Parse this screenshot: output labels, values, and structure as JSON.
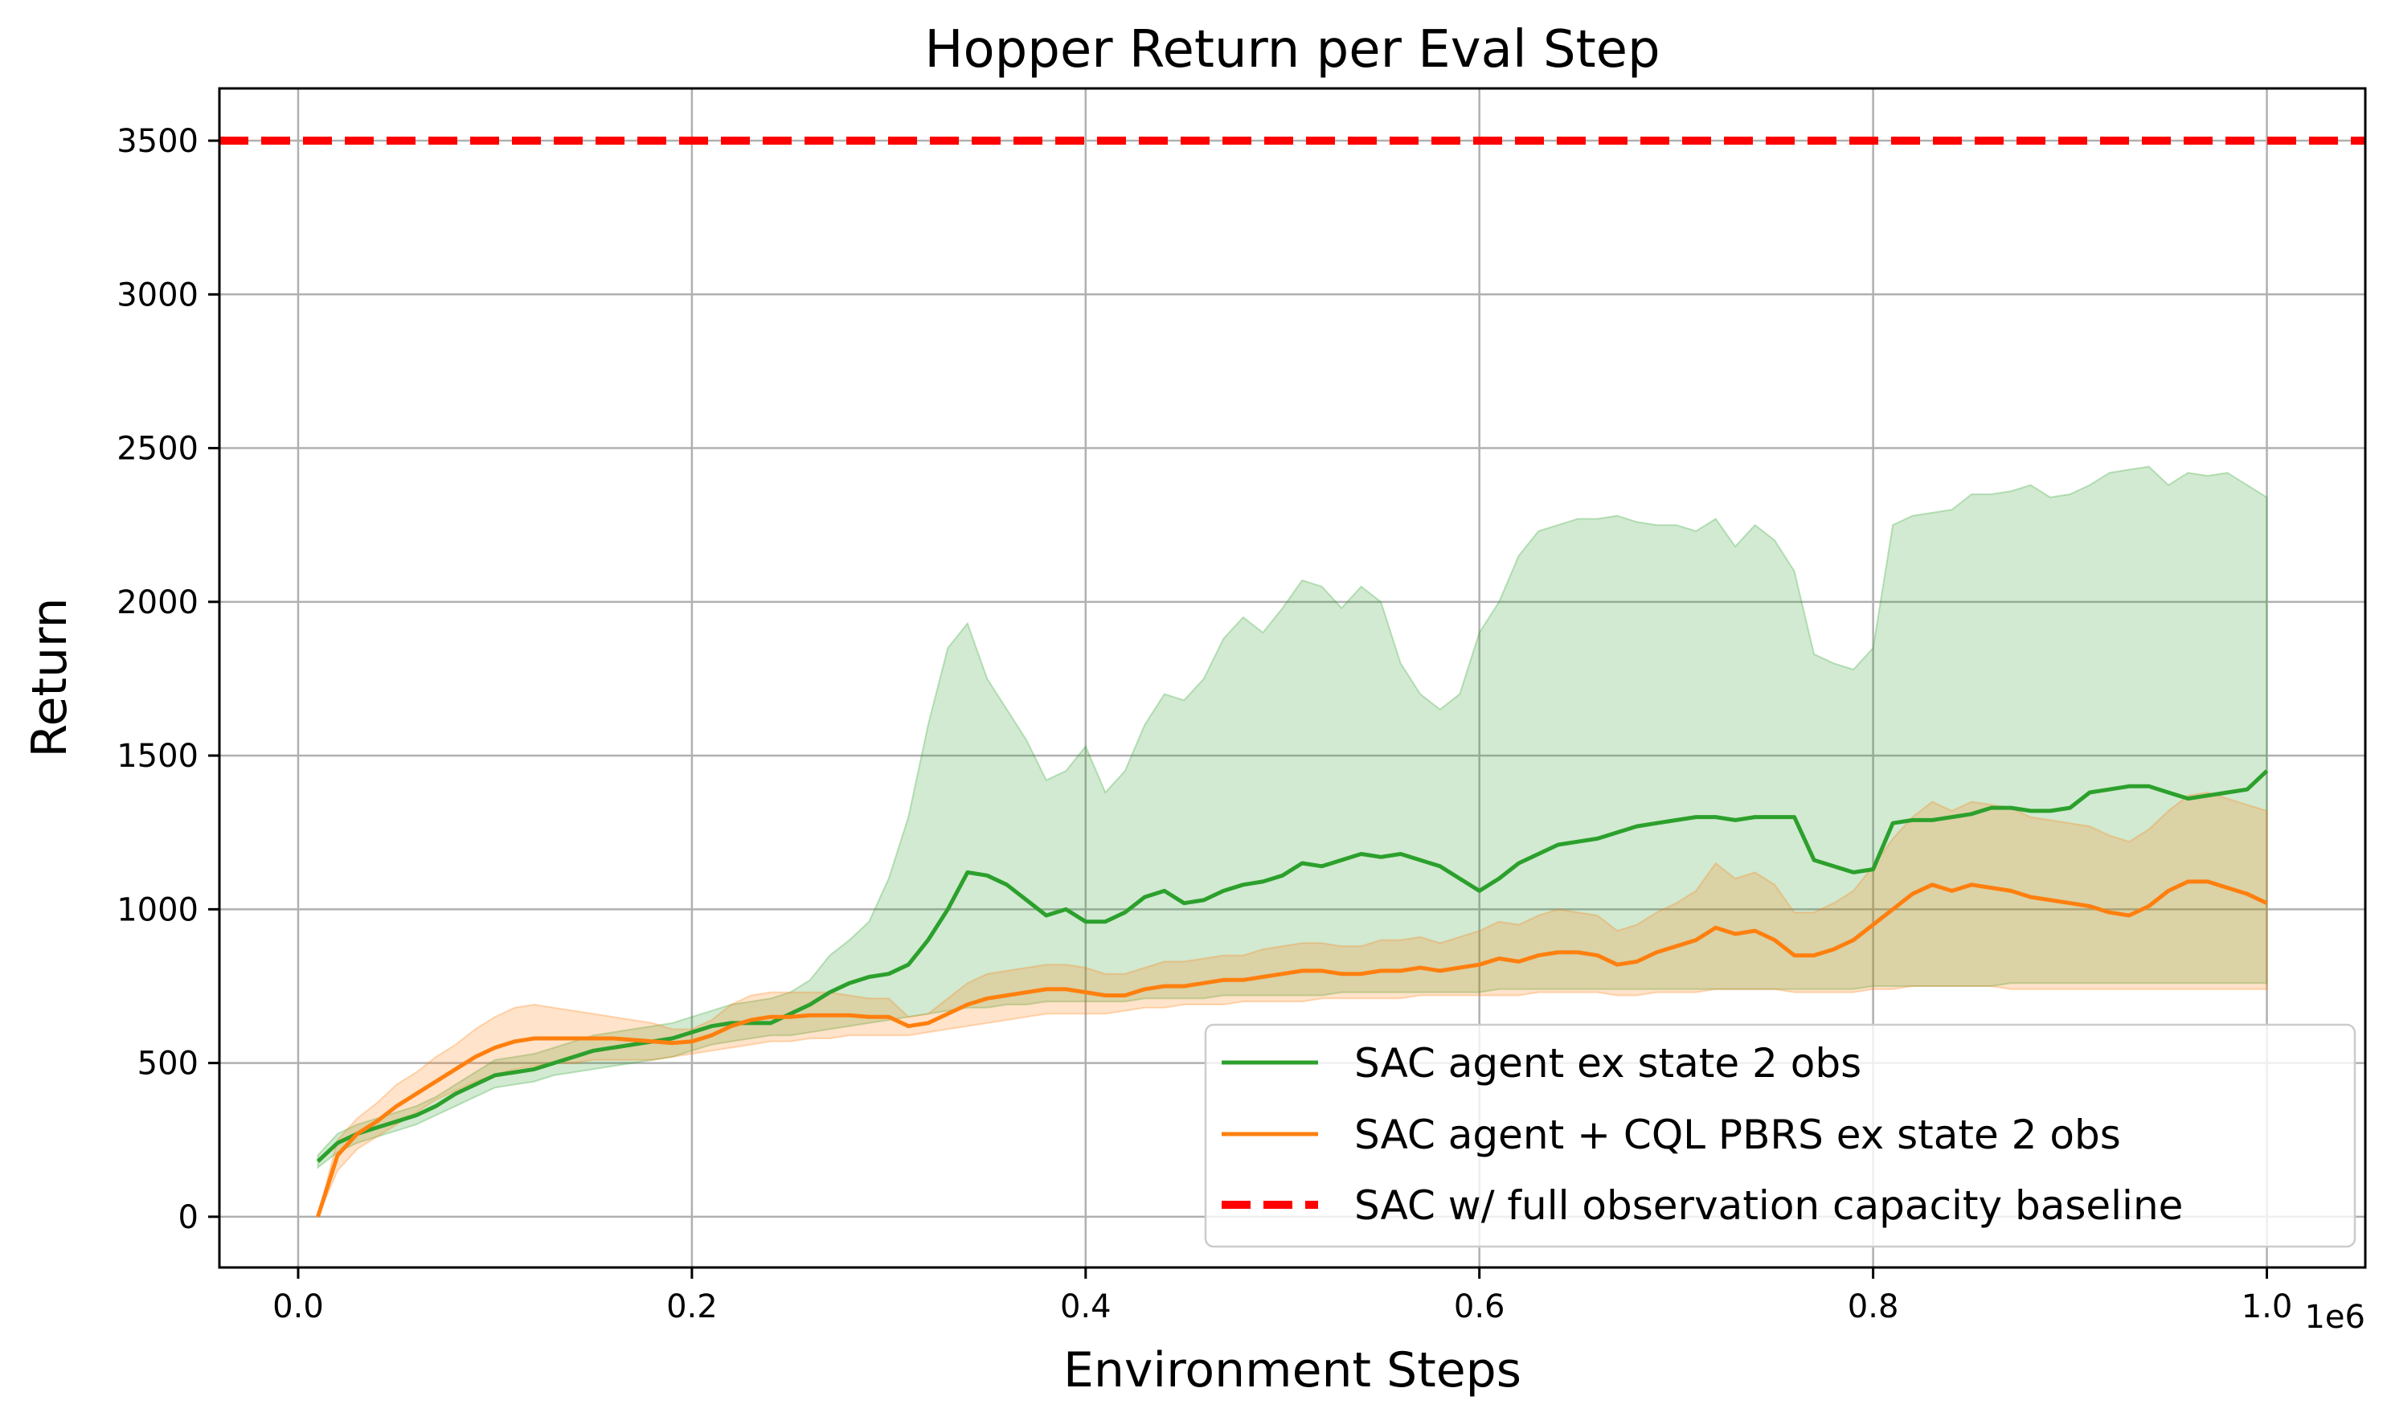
{
  "chart_data": {
    "type": "line",
    "title": "Hopper Return per Eval Step",
    "xlabel": "Environment Steps",
    "ylabel": "Return",
    "x_offset_label": "1e6",
    "xlim": [
      -0.04,
      1.05
    ],
    "ylim": [
      -165,
      3670
    ],
    "xticks": [
      0.0,
      0.2,
      0.4,
      0.6,
      0.8,
      1.0
    ],
    "xtick_labels": [
      "0.0",
      "0.2",
      "0.4",
      "0.6",
      "0.8",
      "1.0"
    ],
    "yticks": [
      0,
      500,
      1000,
      1500,
      2000,
      2500,
      3000,
      3500
    ],
    "ytick_labels": [
      "0",
      "500",
      "1000",
      "1500",
      "2000",
      "2500",
      "3000",
      "3500"
    ],
    "grid": true,
    "legend_position": "bottom-right",
    "series": [
      {
        "name": "SAC agent ex state 2 obs",
        "color": "#2ca02c",
        "band_color": "#2ca02c",
        "x": [
          0.01,
          0.02,
          0.03,
          0.04,
          0.05,
          0.06,
          0.07,
          0.08,
          0.09,
          0.1,
          0.11,
          0.12,
          0.13,
          0.14,
          0.15,
          0.16,
          0.17,
          0.18,
          0.19,
          0.2,
          0.21,
          0.22,
          0.23,
          0.24,
          0.25,
          0.26,
          0.27,
          0.28,
          0.29,
          0.3,
          0.31,
          0.32,
          0.33,
          0.34,
          0.35,
          0.36,
          0.37,
          0.38,
          0.39,
          0.4,
          0.41,
          0.42,
          0.43,
          0.44,
          0.45,
          0.46,
          0.47,
          0.48,
          0.49,
          0.5,
          0.51,
          0.52,
          0.53,
          0.54,
          0.55,
          0.56,
          0.57,
          0.58,
          0.59,
          0.6,
          0.61,
          0.62,
          0.63,
          0.64,
          0.65,
          0.66,
          0.67,
          0.68,
          0.69,
          0.7,
          0.71,
          0.72,
          0.73,
          0.74,
          0.75,
          0.76,
          0.77,
          0.78,
          0.79,
          0.8,
          0.81,
          0.82,
          0.83,
          0.84,
          0.85,
          0.86,
          0.87,
          0.88,
          0.89,
          0.9,
          0.91,
          0.92,
          0.93,
          0.94,
          0.95,
          0.96,
          0.97,
          0.98,
          0.99,
          1.0
        ],
        "mean": [
          180,
          240,
          270,
          290,
          310,
          330,
          360,
          400,
          430,
          460,
          470,
          480,
          500,
          520,
          540,
          550,
          560,
          570,
          580,
          600,
          620,
          630,
          630,
          630,
          660,
          690,
          730,
          760,
          780,
          790,
          820,
          900,
          1000,
          1120,
          1110,
          1080,
          1030,
          980,
          1000,
          960,
          960,
          990,
          1040,
          1060,
          1020,
          1030,
          1060,
          1080,
          1090,
          1110,
          1150,
          1140,
          1160,
          1180,
          1170,
          1180,
          1160,
          1140,
          1100,
          1060,
          1100,
          1150,
          1180,
          1210,
          1220,
          1230,
          1250,
          1270,
          1280,
          1290,
          1300,
          1300,
          1290,
          1300,
          1300,
          1300,
          1160,
          1140,
          1120,
          1130,
          1280,
          1290,
          1290,
          1300,
          1310,
          1330,
          1330,
          1320,
          1320,
          1330,
          1380,
          1390,
          1400,
          1400,
          1380,
          1360,
          1370,
          1380,
          1390,
          1450
        ],
        "lower": [
          160,
          210,
          240,
          260,
          280,
          300,
          330,
          360,
          390,
          420,
          430,
          440,
          460,
          470,
          480,
          490,
          500,
          510,
          520,
          540,
          560,
          570,
          580,
          590,
          590,
          600,
          610,
          620,
          630,
          640,
          650,
          660,
          670,
          680,
          680,
          690,
          690,
          700,
          700,
          700,
          700,
          700,
          710,
          710,
          710,
          710,
          720,
          720,
          720,
          720,
          720,
          720,
          730,
          730,
          730,
          730,
          730,
          730,
          730,
          730,
          740,
          740,
          740,
          740,
          740,
          740,
          740,
          740,
          740,
          740,
          740,
          740,
          740,
          740,
          740,
          740,
          740,
          740,
          740,
          750,
          750,
          750,
          750,
          750,
          750,
          750,
          760,
          760,
          760,
          760,
          760,
          760,
          760,
          760,
          760,
          760,
          760,
          760,
          760,
          760
        ],
        "upper": [
          200,
          270,
          300,
          320,
          340,
          360,
          390,
          430,
          470,
          510,
          520,
          530,
          550,
          570,
          590,
          600,
          610,
          620,
          630,
          650,
          670,
          690,
          700,
          710,
          730,
          770,
          850,
          900,
          960,
          1100,
          1300,
          1600,
          1850,
          1930,
          1750,
          1650,
          1550,
          1420,
          1450,
          1530,
          1380,
          1450,
          1600,
          1700,
          1680,
          1750,
          1880,
          1950,
          1900,
          1980,
          2070,
          2050,
          1980,
          2050,
          2000,
          1800,
          1700,
          1650,
          1700,
          1900,
          2000,
          2150,
          2230,
          2250,
          2270,
          2270,
          2280,
          2260,
          2250,
          2250,
          2230,
          2270,
          2180,
          2250,
          2200,
          2100,
          1830,
          1800,
          1780,
          1850,
          2250,
          2280,
          2290,
          2300,
          2350,
          2350,
          2360,
          2380,
          2340,
          2350,
          2380,
          2420,
          2430,
          2440,
          2380,
          2420,
          2410,
          2420,
          2380,
          2340
        ]
      },
      {
        "name": "SAC agent + CQL PBRS ex state 2 obs",
        "color": "#ff7f0e",
        "band_color": "#ff7f0e",
        "x": [
          0.01,
          0.02,
          0.03,
          0.04,
          0.05,
          0.06,
          0.07,
          0.08,
          0.09,
          0.1,
          0.11,
          0.12,
          0.13,
          0.14,
          0.15,
          0.16,
          0.17,
          0.18,
          0.19,
          0.2,
          0.21,
          0.22,
          0.23,
          0.24,
          0.25,
          0.26,
          0.27,
          0.28,
          0.29,
          0.3,
          0.31,
          0.32,
          0.33,
          0.34,
          0.35,
          0.36,
          0.37,
          0.38,
          0.39,
          0.4,
          0.41,
          0.42,
          0.43,
          0.44,
          0.45,
          0.46,
          0.47,
          0.48,
          0.49,
          0.5,
          0.51,
          0.52,
          0.53,
          0.54,
          0.55,
          0.56,
          0.57,
          0.58,
          0.59,
          0.6,
          0.61,
          0.62,
          0.63,
          0.64,
          0.65,
          0.66,
          0.67,
          0.68,
          0.69,
          0.7,
          0.71,
          0.72,
          0.73,
          0.74,
          0.75,
          0.76,
          0.77,
          0.78,
          0.79,
          0.8,
          0.81,
          0.82,
          0.83,
          0.84,
          0.85,
          0.86,
          0.87,
          0.88,
          0.89,
          0.9,
          0.91,
          0.92,
          0.93,
          0.94,
          0.95,
          0.96,
          0.97,
          0.98,
          0.99,
          1.0
        ],
        "mean": [
          0,
          200,
          270,
          310,
          360,
          400,
          440,
          480,
          520,
          550,
          570,
          580,
          580,
          580,
          580,
          580,
          575,
          570,
          565,
          570,
          590,
          620,
          640,
          650,
          650,
          655,
          655,
          655,
          650,
          650,
          620,
          630,
          660,
          690,
          710,
          720,
          730,
          740,
          740,
          730,
          720,
          720,
          740,
          750,
          750,
          760,
          770,
          770,
          780,
          790,
          800,
          800,
          790,
          790,
          800,
          800,
          810,
          800,
          810,
          820,
          840,
          830,
          850,
          860,
          860,
          850,
          820,
          830,
          860,
          880,
          900,
          940,
          920,
          930,
          900,
          850,
          850,
          870,
          900,
          950,
          1000,
          1050,
          1080,
          1060,
          1080,
          1070,
          1060,
          1040,
          1030,
          1020,
          1010,
          990,
          980,
          1010,
          1060,
          1090,
          1090,
          1070,
          1050,
          1020
        ],
        "lower": [
          0,
          150,
          220,
          260,
          300,
          340,
          380,
          410,
          440,
          460,
          480,
          490,
          500,
          500,
          510,
          510,
          510,
          510,
          520,
          530,
          540,
          550,
          560,
          570,
          570,
          580,
          580,
          590,
          590,
          590,
          590,
          600,
          610,
          620,
          630,
          640,
          650,
          660,
          660,
          660,
          660,
          670,
          680,
          680,
          690,
          690,
          690,
          700,
          700,
          700,
          700,
          710,
          710,
          710,
          710,
          710,
          720,
          720,
          720,
          720,
          720,
          720,
          730,
          730,
          730,
          730,
          720,
          720,
          730,
          730,
          730,
          740,
          740,
          740,
          740,
          730,
          730,
          730,
          730,
          740,
          740,
          750,
          750,
          750,
          750,
          750,
          740,
          740,
          740,
          740,
          740,
          740,
          740,
          740,
          740,
          740,
          740,
          740,
          740,
          740
        ],
        "upper": [
          0,
          250,
          320,
          370,
          430,
          470,
          520,
          560,
          610,
          650,
          680,
          690,
          680,
          670,
          660,
          650,
          640,
          630,
          610,
          610,
          640,
          690,
          720,
          730,
          730,
          730,
          730,
          720,
          710,
          710,
          650,
          660,
          710,
          760,
          790,
          800,
          810,
          820,
          820,
          810,
          790,
          790,
          810,
          830,
          830,
          840,
          850,
          850,
          870,
          880,
          890,
          890,
          880,
          880,
          900,
          900,
          910,
          890,
          910,
          930,
          960,
          950,
          980,
          1000,
          990,
          980,
          930,
          950,
          990,
          1020,
          1060,
          1150,
          1100,
          1120,
          1080,
          990,
          990,
          1020,
          1060,
          1140,
          1230,
          1300,
          1350,
          1320,
          1350,
          1340,
          1330,
          1300,
          1290,
          1280,
          1270,
          1240,
          1220,
          1260,
          1320,
          1370,
          1380,
          1360,
          1340,
          1320
        ]
      }
    ],
    "baseline": {
      "name": "SAC w/ full observation capacity baseline",
      "y": 3500,
      "color": "#ff0000",
      "style": "dashed"
    }
  }
}
